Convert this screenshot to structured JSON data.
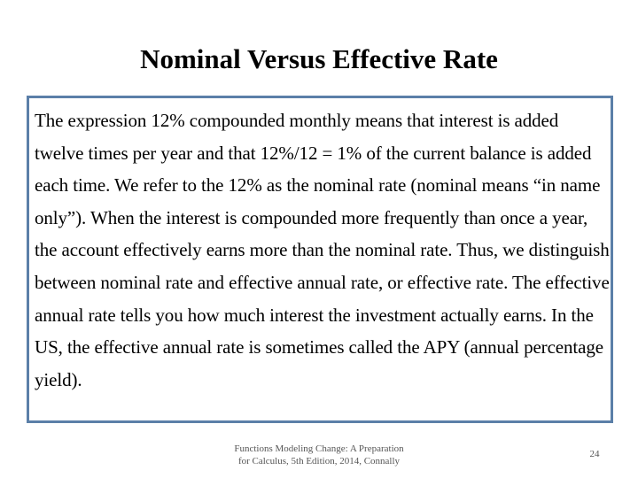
{
  "slide": {
    "title": "Nominal Versus Effective Rate",
    "body": "The expression 12% compounded monthly means that interest is added twelve times per year and that 12%/12 = 1% of the current balance is added each time. We refer to the 12% as the nominal rate (nominal means “in name only”). When the interest is compounded more frequently than once a year, the account effectively earns more than the nominal rate. Thus, we distinguish between nominal rate and effective annual rate, or effective rate. The effective annual rate tells you how much interest the investment actually earns. In the US, the effective annual rate is sometimes called the APY (annual percentage yield).",
    "box_border_color": "#5b7fa8"
  },
  "footer": {
    "citation_line1": "Functions Modeling Change: A Preparation",
    "citation_line2": "for Calculus, 5th Edition, 2014, Connally",
    "page_number": "24"
  }
}
